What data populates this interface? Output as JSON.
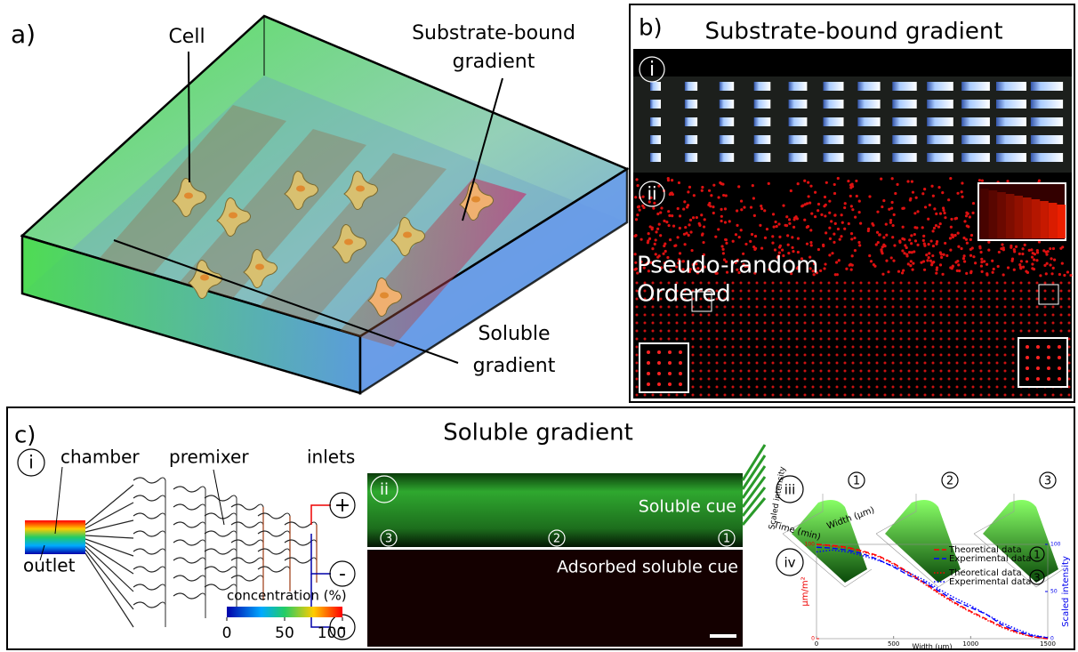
{
  "panel_a": {
    "label": "a)",
    "cell": "Cell",
    "substrate": [
      "Substrate-bound",
      "gradient"
    ],
    "soluble": [
      "Soluble",
      "gradient"
    ]
  },
  "panel_b": {
    "label": "b)",
    "title": "Substrate-bound gradient",
    "sub_i": "i",
    "sub_ii": "ii",
    "pseudo": "Pseudo-random",
    "ordered": "Ordered"
  },
  "panel_c": {
    "label": "c)",
    "title": "Soluble gradient",
    "i": {
      "label": "i",
      "chamber": "chamber",
      "premixer": "premixer",
      "inlets": "inlets",
      "outlet": "outlet",
      "plus": "+",
      "minus_1": "-",
      "minus_2": "-",
      "colorbar": {
        "title": "concentration (%)",
        "ticks": [
          0,
          50,
          100
        ]
      }
    },
    "ii": {
      "label": "ii",
      "top": "Soluble cue",
      "bottom": "Adsorbed soluble cue",
      "positions": [
        "3",
        "2",
        "1"
      ]
    },
    "iii": {
      "label": "iii",
      "markers": [
        "1",
        "2",
        "3"
      ],
      "z_label": "Scaled intensity",
      "x_label": "Time (min)",
      "y_label": "Width (μm)"
    },
    "iv": {
      "label": "iv",
      "type": "line",
      "x_label": "Width (μm)",
      "y_label": "μm/m²",
      "y2_label": "Scaled intensity",
      "x": [
        0,
        100,
        200,
        300,
        400,
        500,
        600,
        700,
        800,
        900,
        1000,
        1100,
        1200,
        1300,
        1400,
        1500
      ],
      "xlim": [
        0,
        1500
      ],
      "xticks": [
        0,
        500,
        1000,
        1500
      ],
      "ylim": [
        0,
        100
      ],
      "yticks": [
        0,
        100
      ],
      "y2lim": [
        0,
        100
      ],
      "y2ticks": [
        0,
        50,
        100
      ],
      "legend_markers": [
        "1",
        "3"
      ],
      "series": [
        {
          "name": "Theoretical data",
          "color": "#ff0000",
          "dash": "dashed",
          "values": [
            100,
            99,
            97,
            93,
            88,
            80,
            70,
            59,
            48,
            38,
            29,
            21,
            13,
            7,
            2,
            0
          ]
        },
        {
          "name": "Experimental data",
          "color": "#0000ff",
          "dash": "dashed",
          "axis": "y2",
          "values": [
            97,
            96,
            94,
            90,
            84,
            76,
            67,
            60,
            50,
            40,
            33,
            26,
            15,
            8,
            3,
            1
          ]
        },
        {
          "name": "Theoretical data",
          "color": "#ff0000",
          "dash": "dotted",
          "values": [
            100,
            98,
            96,
            92,
            87,
            79,
            69,
            58,
            47,
            37,
            28,
            20,
            12,
            6,
            2,
            0
          ]
        },
        {
          "name": "Experimental data",
          "color": "#0000ff",
          "dash": "dotted",
          "axis": "y2",
          "values": [
            92,
            94,
            92,
            88,
            83,
            77,
            70,
            62,
            52,
            43,
            35,
            26,
            17,
            10,
            4,
            1
          ]
        }
      ]
    }
  }
}
